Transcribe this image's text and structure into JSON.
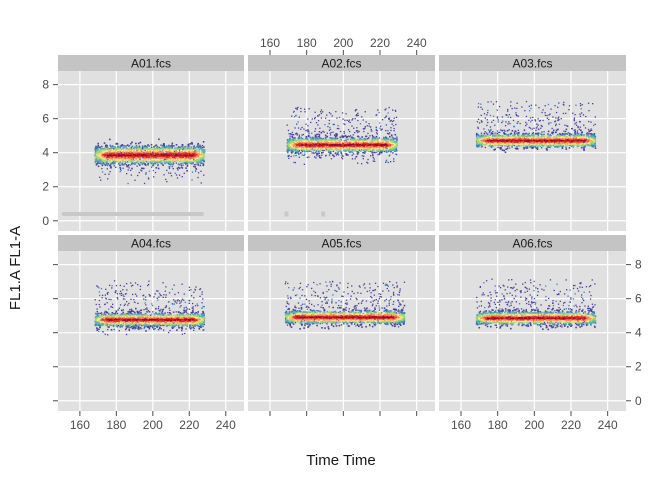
{
  "chart_data": {
    "type": "scatter",
    "title": "",
    "xlabel": "Time Time",
    "ylabel": "FL1.A FL1-A",
    "xlim": [
      148,
      250
    ],
    "ylim": [
      -0.6,
      8.8
    ],
    "xticks": [
      160,
      180,
      200,
      220,
      240
    ],
    "yticks": [
      0,
      2,
      4,
      6,
      8
    ],
    "grid": true,
    "legend": "none",
    "density_colors": [
      "#4b3f9a",
      "#3d7fbf",
      "#53b6ad",
      "#a5d96a",
      "#fee08b",
      "#fc8d59",
      "#d73027",
      "#a50026"
    ],
    "panels": [
      {
        "name": "A01.fcs",
        "x_range": [
          168,
          228
        ],
        "core_y": 3.9,
        "core_width": 0.28,
        "lower_tail": 1.8,
        "upper_tail": 0.6,
        "y_min": 0.6,
        "y_max": 4.5,
        "debris_y": 0.4,
        "debris_x": [
          150,
          228
        ]
      },
      {
        "name": "A02.fcs",
        "x_range": [
          169,
          229
        ],
        "core_y": 4.5,
        "core_width": 0.22,
        "lower_tail": 1.3,
        "upper_tail": 2.2,
        "y_min": 2.3,
        "y_max": 6.8,
        "debris_y": 0.4,
        "debris_x": [
          169,
          189
        ]
      },
      {
        "name": "A03.fcs",
        "x_range": [
          168,
          233
        ],
        "core_y": 4.75,
        "core_width": 0.2,
        "lower_tail": 0.5,
        "upper_tail": 2.3,
        "y_min": 3.8,
        "y_max": 7.1,
        "debris_y": null,
        "debris_x": []
      },
      {
        "name": "A04.fcs",
        "x_range": [
          168,
          228
        ],
        "core_y": 4.8,
        "core_width": 0.2,
        "lower_tail": 0.9,
        "upper_tail": 2.3,
        "y_min": 3.6,
        "y_max": 7.2,
        "debris_y": null,
        "debris_x": []
      },
      {
        "name": "A05.fcs",
        "x_range": [
          168,
          233
        ],
        "core_y": 4.95,
        "core_width": 0.2,
        "lower_tail": 0.6,
        "upper_tail": 2.1,
        "y_min": 4.0,
        "y_max": 7.1,
        "debris_y": null,
        "debris_x": []
      },
      {
        "name": "A06.fcs",
        "x_range": [
          168,
          233
        ],
        "core_y": 4.9,
        "core_width": 0.2,
        "lower_tail": 0.6,
        "upper_tail": 2.3,
        "y_min": 4.0,
        "y_max": 7.3,
        "debris_y": null,
        "debris_x": []
      }
    ]
  }
}
